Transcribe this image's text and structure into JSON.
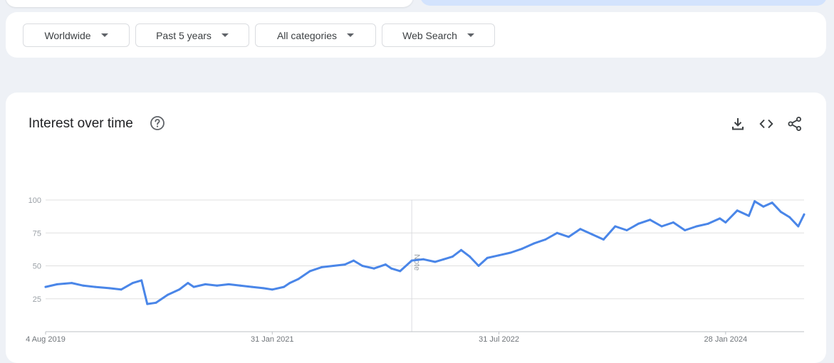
{
  "filters": [
    {
      "label": "Worldwide"
    },
    {
      "label": "Past 5 years"
    },
    {
      "label": "All categories"
    },
    {
      "label": "Web Search"
    }
  ],
  "card": {
    "title": "Interest over time",
    "help_icon": "help-circle-icon",
    "tools": [
      "download-icon",
      "embed-code-icon",
      "share-icon"
    ]
  },
  "colors": {
    "line": "#4a86e8",
    "grid": "#e0e0e0",
    "note_line": "#dadce0"
  },
  "chart_data": {
    "type": "line",
    "title": "",
    "xlabel": "",
    "ylabel": "",
    "ylim": [
      0,
      100
    ],
    "yticks": [
      25,
      50,
      75,
      100
    ],
    "grid": true,
    "xlim": [
      "2019-08-04",
      "2024-08-04"
    ],
    "xticks": [
      {
        "date": "2019-08-04",
        "label": "4 Aug 2019"
      },
      {
        "date": "2021-01-31",
        "label": "31 Jan 2021"
      },
      {
        "date": "2022-07-31",
        "label": "31 Jul 2022"
      },
      {
        "date": "2024-01-28",
        "label": "28 Jan 2024"
      }
    ],
    "note": {
      "date": "2022-01-02",
      "label": "Note"
    },
    "series": [
      {
        "points": [
          [
            "2019-08-04",
            34
          ],
          [
            "2019-09-01",
            36
          ],
          [
            "2019-10-06",
            37
          ],
          [
            "2019-11-03",
            35
          ],
          [
            "2019-12-01",
            34
          ],
          [
            "2020-01-05",
            33
          ],
          [
            "2020-02-02",
            32
          ],
          [
            "2020-03-01",
            37
          ],
          [
            "2020-03-22",
            39
          ],
          [
            "2020-04-05",
            21
          ],
          [
            "2020-04-26",
            22
          ],
          [
            "2020-05-24",
            28
          ],
          [
            "2020-06-21",
            32
          ],
          [
            "2020-07-12",
            37
          ],
          [
            "2020-07-26",
            34
          ],
          [
            "2020-08-23",
            36
          ],
          [
            "2020-09-20",
            35
          ],
          [
            "2020-10-18",
            36
          ],
          [
            "2020-11-15",
            35
          ],
          [
            "2020-12-13",
            34
          ],
          [
            "2021-01-10",
            33
          ],
          [
            "2021-01-31",
            32
          ],
          [
            "2021-02-28",
            34
          ],
          [
            "2021-03-14",
            37
          ],
          [
            "2021-04-04",
            40
          ],
          [
            "2021-05-02",
            46
          ],
          [
            "2021-05-30",
            49
          ],
          [
            "2021-06-27",
            50
          ],
          [
            "2021-07-25",
            51
          ],
          [
            "2021-08-15",
            54
          ],
          [
            "2021-09-05",
            50
          ],
          [
            "2021-10-03",
            48
          ],
          [
            "2021-10-31",
            51
          ],
          [
            "2021-11-14",
            48
          ],
          [
            "2021-12-05",
            46
          ],
          [
            "2022-01-02",
            54
          ],
          [
            "2022-01-30",
            55
          ],
          [
            "2022-02-27",
            53
          ],
          [
            "2022-03-20",
            55
          ],
          [
            "2022-04-10",
            57
          ],
          [
            "2022-05-01",
            62
          ],
          [
            "2022-05-22",
            57
          ],
          [
            "2022-06-12",
            50
          ],
          [
            "2022-07-03",
            56
          ],
          [
            "2022-07-31",
            58
          ],
          [
            "2022-08-28",
            60
          ],
          [
            "2022-09-25",
            63
          ],
          [
            "2022-10-23",
            67
          ],
          [
            "2022-11-20",
            70
          ],
          [
            "2022-12-18",
            75
          ],
          [
            "2023-01-15",
            72
          ],
          [
            "2023-02-12",
            78
          ],
          [
            "2023-03-12",
            74
          ],
          [
            "2023-04-09",
            70
          ],
          [
            "2023-05-07",
            80
          ],
          [
            "2023-06-04",
            77
          ],
          [
            "2023-07-02",
            82
          ],
          [
            "2023-07-30",
            85
          ],
          [
            "2023-08-27",
            80
          ],
          [
            "2023-09-24",
            83
          ],
          [
            "2023-10-22",
            77
          ],
          [
            "2023-11-19",
            80
          ],
          [
            "2023-12-17",
            82
          ],
          [
            "2024-01-14",
            86
          ],
          [
            "2024-01-28",
            83
          ],
          [
            "2024-02-25",
            92
          ],
          [
            "2024-03-24",
            88
          ],
          [
            "2024-04-07",
            99
          ],
          [
            "2024-04-28",
            95
          ],
          [
            "2024-05-19",
            98
          ],
          [
            "2024-06-09",
            91
          ],
          [
            "2024-06-30",
            87
          ],
          [
            "2024-07-21",
            80
          ],
          [
            "2024-08-04",
            89
          ]
        ]
      }
    ]
  }
}
